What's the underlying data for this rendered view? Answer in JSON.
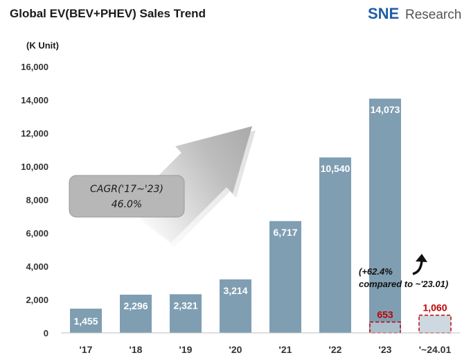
{
  "title": "Global EV(BEV+PHEV)  Sales Trend",
  "logo": {
    "brand": "SNE",
    "suffix": "Research",
    "color": "#1f5ea8"
  },
  "chart_data": {
    "type": "bar",
    "title": "Global EV(BEV+PHEV)  Sales Trend",
    "unit_label": "(K Unit)",
    "categories": [
      "'17",
      "'18",
      "'19",
      "'20",
      "'21",
      "'22",
      "'23",
      "'~24.01"
    ],
    "values": [
      1455,
      2296,
      2321,
      3214,
      6717,
      10540,
      14073,
      1060
    ],
    "value_labels": [
      "1,455",
      "2,296",
      "2,321",
      "3,214",
      "6,717",
      "10,540",
      "14,073",
      "1,060"
    ],
    "highlight": {
      "category": "'23",
      "value": 653,
      "label": "653"
    },
    "ylim": [
      0,
      16000
    ],
    "ytick_step": 2000,
    "ytick_labels": [
      "0",
      "2,000",
      "4,000",
      "6,000",
      "8,000",
      "10,000",
      "12,000",
      "14,000",
      "16,000"
    ],
    "grid": false,
    "annotations": {
      "cagr_line1": "CAGR('17~'23)",
      "cagr_line2": "46.0%",
      "growth_line1": "(+62.4%",
      "growth_line2": "compared to ~'23.01)"
    },
    "colors": {
      "bar": "#7f9eb2",
      "partial_fill": "#cdd8e0",
      "partial_border": "#c00000",
      "label_red": "#c00000"
    }
  }
}
